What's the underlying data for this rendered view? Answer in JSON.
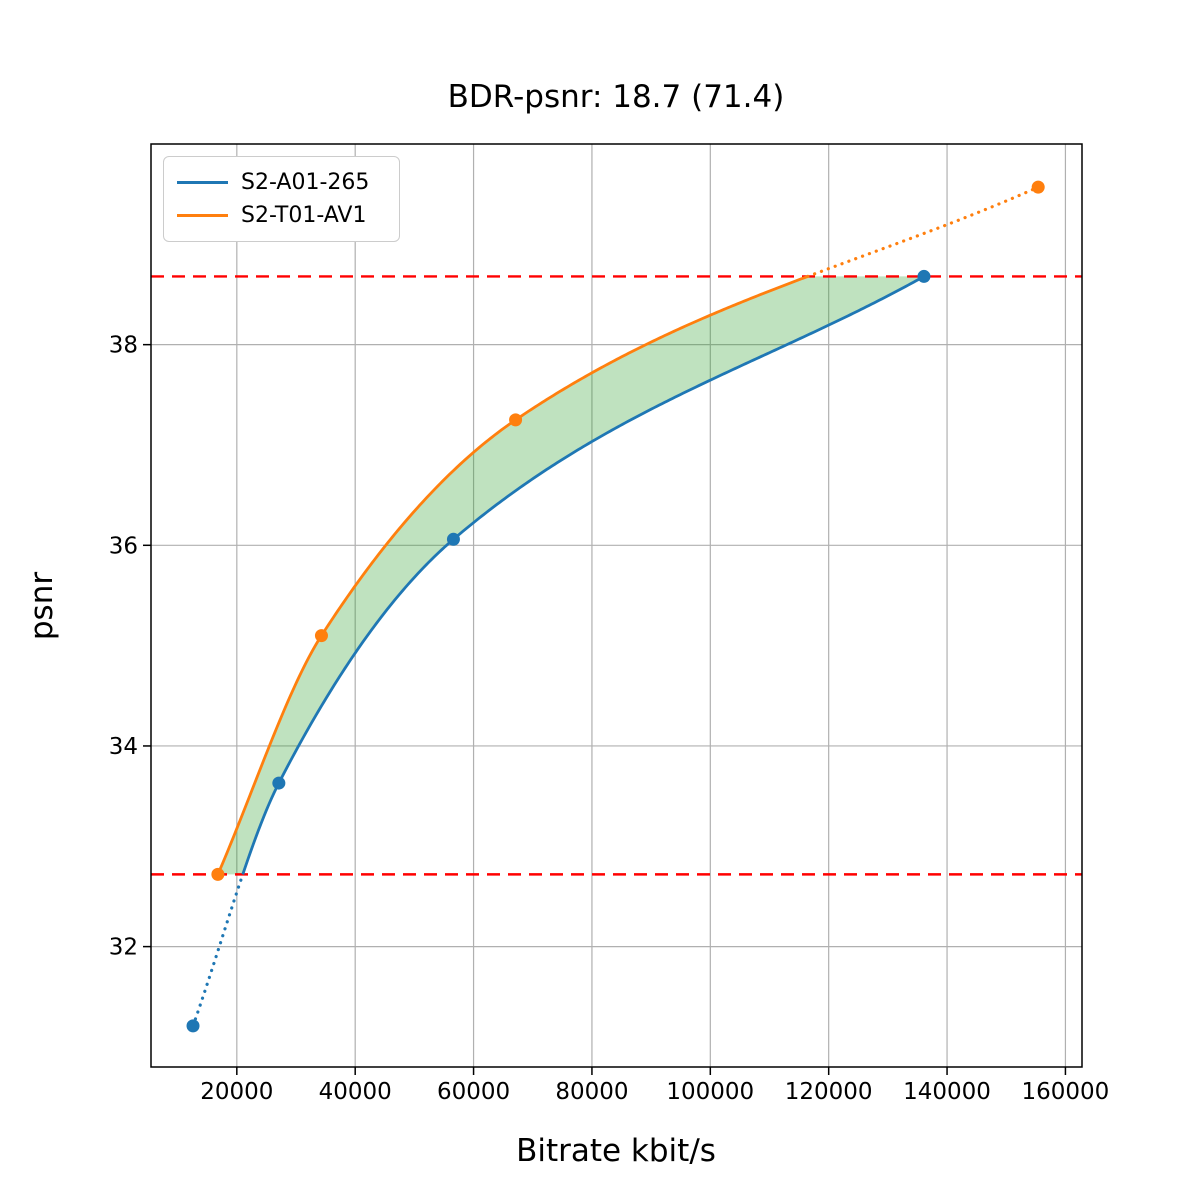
{
  "title": "BDR-psnr: 18.7 (71.4)",
  "chart_data": {
    "type": "line",
    "title": "BDR-psnr: 18.7 (71.4)",
    "xlabel": "Bitrate kbit/s",
    "ylabel": "psnr",
    "xlim": [
      5500,
      162800
    ],
    "ylim": [
      30.8,
      40.0
    ],
    "xticks": [
      20000,
      40000,
      60000,
      80000,
      100000,
      120000,
      140000,
      160000
    ],
    "yticks": [
      32,
      34,
      36,
      38
    ],
    "grid": true,
    "legend_position": "upper left",
    "series": [
      {
        "name": "S2-A01-265",
        "color": "#1f77b4",
        "x": [
          12600,
          27100,
          56600,
          136100
        ],
        "y": [
          31.21,
          33.63,
          36.06,
          38.68
        ]
      },
      {
        "name": "S2-T01-AV1",
        "color": "#ff7f0e",
        "x": [
          16800,
          34300,
          67100,
          155400
        ],
        "y": [
          32.72,
          35.1,
          37.25,
          39.57
        ]
      }
    ],
    "hlines": {
      "color": "#ff0000",
      "style": "dashed",
      "values": [
        32.72,
        38.68
      ],
      "meaning": "common psnr interval bounds used for BD-rate"
    },
    "fill_between": {
      "color": "#2ca02c",
      "opacity": 0.3,
      "description": "shaded area between the two rate-distortion curves inside the common psnr interval"
    },
    "line_style_note": "curves solid inside common psnr interval, dotted outside it",
    "colors": {
      "grid": "#b0b0b0",
      "axes": "#000000",
      "background": "#ffffff"
    }
  }
}
